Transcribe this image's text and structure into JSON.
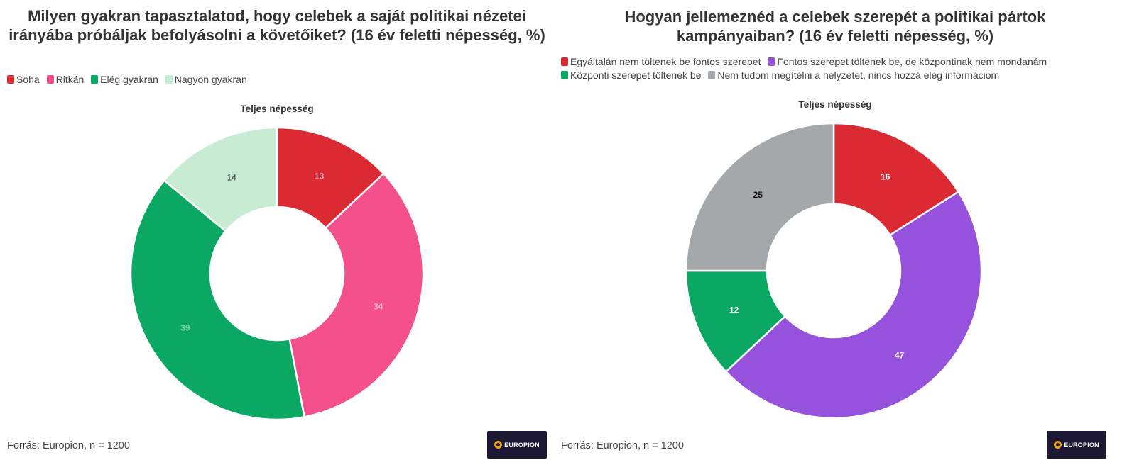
{
  "chart_data": [
    {
      "type": "pie",
      "title": "Milyen gyakran tapasztalatod, hogy celebek a saját politikai nézetei irányába próbáljak befolyásolni a követőiket? (16 év feletti népesség, %)",
      "subtitle": "Teljes népesség",
      "categories": [
        "Soha",
        "Ritkán",
        "Elég gyakran",
        "Nagyon gyakran"
      ],
      "values": [
        13,
        34,
        39,
        14
      ],
      "colors": [
        "#dc2a33",
        "#f4508c",
        "#0aa862",
        "#c7ebd3"
      ],
      "label_colors": [
        "#f6a7b8",
        "#f7b4cf",
        "#7fd3a7",
        "#333333"
      ],
      "legend_position": "top-left",
      "source": "Forrás: Europion, n = 1200",
      "logo_text": "EUROPION"
    },
    {
      "type": "pie",
      "title": "Hogyan jellemeznéd a celebek szerepét a politikai pártok kampányaiban? (16 év feletti népesség, %)",
      "subtitle": "Teljes népesség",
      "categories": [
        "Egyáltalán nem töltenek be fontos szerepet",
        "Fontos szerepet töltenek be, de központinak nem mondanám",
        "Központi szerepet töltenek be",
        "Nem tudom megítélni a helyzetet, nincs hozzá elég információm"
      ],
      "values": [
        16,
        47,
        12,
        25
      ],
      "colors": [
        "#dc2a33",
        "#9652dc",
        "#0aa862",
        "#a5a8aa"
      ],
      "label_colors": [
        "#ffffff",
        "#ffffff",
        "#ffffff",
        "#111111"
      ],
      "legend_position": "top-left",
      "source": "Forrás: Europion, n = 1200",
      "logo_text": "EUROPION"
    }
  ]
}
